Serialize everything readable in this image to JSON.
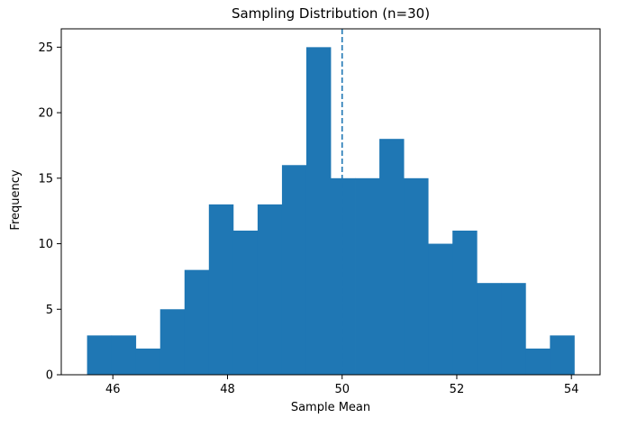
{
  "chart_data": {
    "type": "bar",
    "title": "Sampling Distribution (n=30)",
    "xlabel": "Sample Mean",
    "ylabel": "Frequency",
    "bins": [
      {
        "start": 45.55,
        "end": 45.975,
        "count": 3
      },
      {
        "start": 45.975,
        "end": 46.4,
        "count": 3
      },
      {
        "start": 46.4,
        "end": 46.825,
        "count": 2
      },
      {
        "start": 46.825,
        "end": 47.25,
        "count": 5
      },
      {
        "start": 47.25,
        "end": 47.675,
        "count": 8
      },
      {
        "start": 47.675,
        "end": 48.1,
        "count": 13
      },
      {
        "start": 48.1,
        "end": 48.525,
        "count": 11
      },
      {
        "start": 48.525,
        "end": 48.95,
        "count": 13
      },
      {
        "start": 48.95,
        "end": 49.375,
        "count": 16
      },
      {
        "start": 49.375,
        "end": 49.8,
        "count": 25
      },
      {
        "start": 49.8,
        "end": 50.225,
        "count": 15
      },
      {
        "start": 50.225,
        "end": 50.65,
        "count": 15
      },
      {
        "start": 50.65,
        "end": 51.075,
        "count": 18
      },
      {
        "start": 51.075,
        "end": 51.5,
        "count": 15
      },
      {
        "start": 51.5,
        "end": 51.925,
        "count": 10
      },
      {
        "start": 51.925,
        "end": 52.35,
        "count": 11
      },
      {
        "start": 52.35,
        "end": 52.775,
        "count": 7
      },
      {
        "start": 52.775,
        "end": 53.2,
        "count": 7
      },
      {
        "start": 53.2,
        "end": 53.625,
        "count": 2
      },
      {
        "start": 53.625,
        "end": 54.05,
        "count": 3
      }
    ],
    "reference_line": {
      "x": 50.0,
      "style": "dashed"
    },
    "xlim": [
      45.1,
      54.5
    ],
    "ylim": [
      0,
      26.4
    ],
    "xticks": [
      46,
      48,
      50,
      52,
      54
    ],
    "yticks": [
      0,
      5,
      10,
      15,
      20,
      25
    ],
    "grid": false,
    "colors": {
      "bar": "#1f77b4",
      "reference_line": "#1f77b4",
      "axis": "#000000"
    }
  }
}
